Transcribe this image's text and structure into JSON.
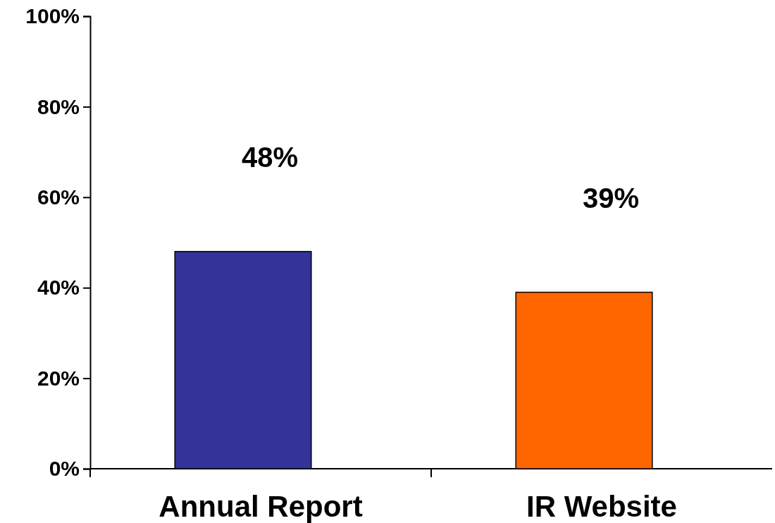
{
  "chart_data": {
    "type": "bar",
    "categories": [
      "Annual Report",
      "IR Website"
    ],
    "values": [
      48,
      39
    ],
    "colors": [
      "#333399",
      "#ff6600"
    ],
    "ylim": [
      0,
      100
    ],
    "yticks": [
      {
        "value": 0,
        "label": "0%"
      },
      {
        "value": 20,
        "label": "20%"
      },
      {
        "value": 40,
        "label": "40%"
      },
      {
        "value": 60,
        "label": "60%"
      },
      {
        "value": 80,
        "label": "80%"
      },
      {
        "value": 100,
        "label": "100%"
      }
    ],
    "value_labels": [
      "48%",
      "39%"
    ],
    "grid": false
  }
}
